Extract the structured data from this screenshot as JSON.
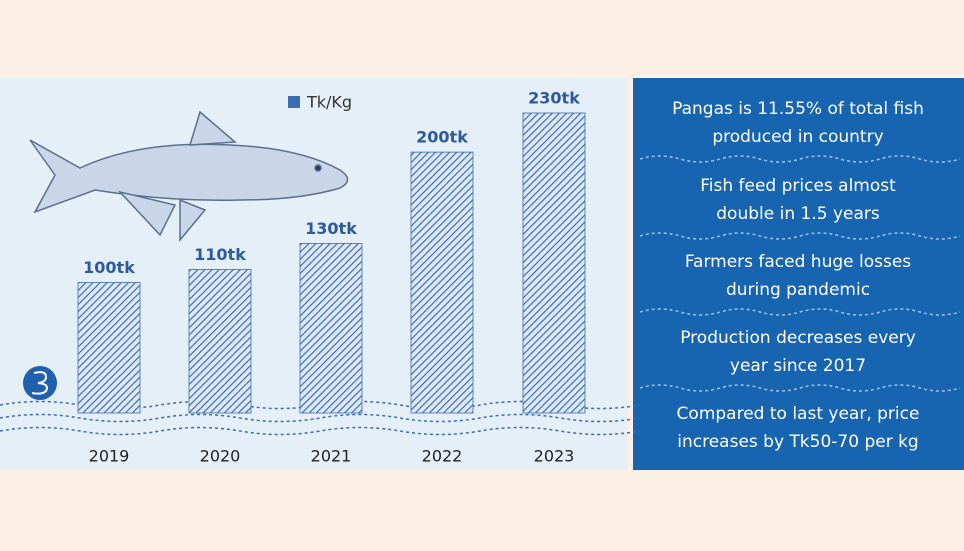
{
  "chart_data": {
    "type": "bar",
    "categories": [
      "2019",
      "2020",
      "2021",
      "2022",
      "2023"
    ],
    "series": [
      {
        "name": "Tk/Kg",
        "color": "#3b6db3",
        "values": [
          100,
          110,
          130,
          200,
          230
        ],
        "value_labels": [
          "100tk",
          "110tk",
          "130tk",
          "200tk",
          "230tk"
        ]
      }
    ]
  },
  "facts": [
    [
      "Pangas is 11.55% of total fish",
      "produced in country"
    ],
    [
      "Fish feed prices almost",
      "double in 1.5 years"
    ],
    [
      "Farmers faced huge losses",
      "during pandemic"
    ],
    [
      "Production decreases every",
      "year since 2017"
    ],
    [
      "Compared to last year, price",
      "increases by Tk50-70 per kg"
    ]
  ]
}
